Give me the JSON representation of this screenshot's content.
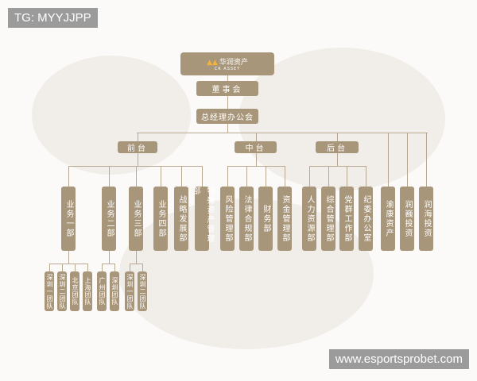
{
  "watermarks": {
    "top_left": "TG: MYYJJPP",
    "bottom_right": "www.esportsprobet.com"
  },
  "colors": {
    "box": "#a8967a",
    "line": "#b8aa92",
    "logo_mark": "#f3b23a"
  },
  "logo": {
    "name_cn": "华润资产",
    "name_en": "CR ASSET"
  },
  "board": "董事会",
  "gm_office": "总经理办公会",
  "groups": [
    {
      "label": "前台",
      "departments": [
        {
          "label": "业务一部",
          "teams": [
            "深圳一团队",
            "深圳二团队",
            "北京团队",
            "上海团队"
          ]
        },
        {
          "label": "业务二部",
          "teams": [
            "广州团队",
            "深圳团队"
          ]
        },
        {
          "label": "业务三部",
          "teams": [
            "深圳一团队",
            "深圳二团队"
          ]
        },
        {
          "label": "业务四部",
          "teams": []
        },
        {
          "label": "战略发展部",
          "teams": []
        },
        {
          "label": "特殊资产管理部",
          "teams": []
        }
      ]
    },
    {
      "label": "中台",
      "departments": [
        {
          "label": "风险管理部"
        },
        {
          "label": "法律合规部"
        },
        {
          "label": "财务部"
        },
        {
          "label": "资金管理部"
        }
      ]
    },
    {
      "label": "后台",
      "departments": [
        {
          "label": "人力资源部"
        },
        {
          "label": "综合管理部"
        },
        {
          "label": "党群工作部"
        },
        {
          "label": "纪委办公室"
        }
      ]
    }
  ],
  "subsidiaries": [
    "渝康资产",
    "润巍投资",
    "润海投资"
  ]
}
